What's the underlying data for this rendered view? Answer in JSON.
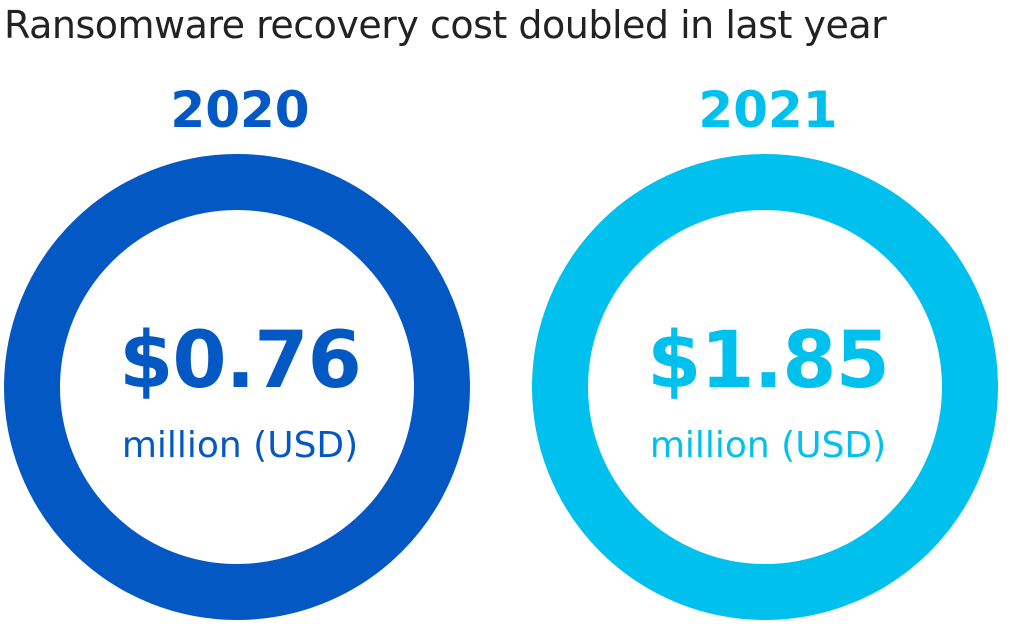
{
  "chart_data": {
    "type": "pie",
    "title": "Ransomware recovery cost doubled in last year",
    "categories": [
      "2020",
      "2021"
    ],
    "values": [
      0.76,
      1.85
    ],
    "value_labels": [
      "$0.76",
      "$1.85"
    ],
    "unit_label": "million (USD)",
    "colors": [
      "#0358c4",
      "#00c0ee"
    ],
    "legend": "none",
    "grid": false
  }
}
